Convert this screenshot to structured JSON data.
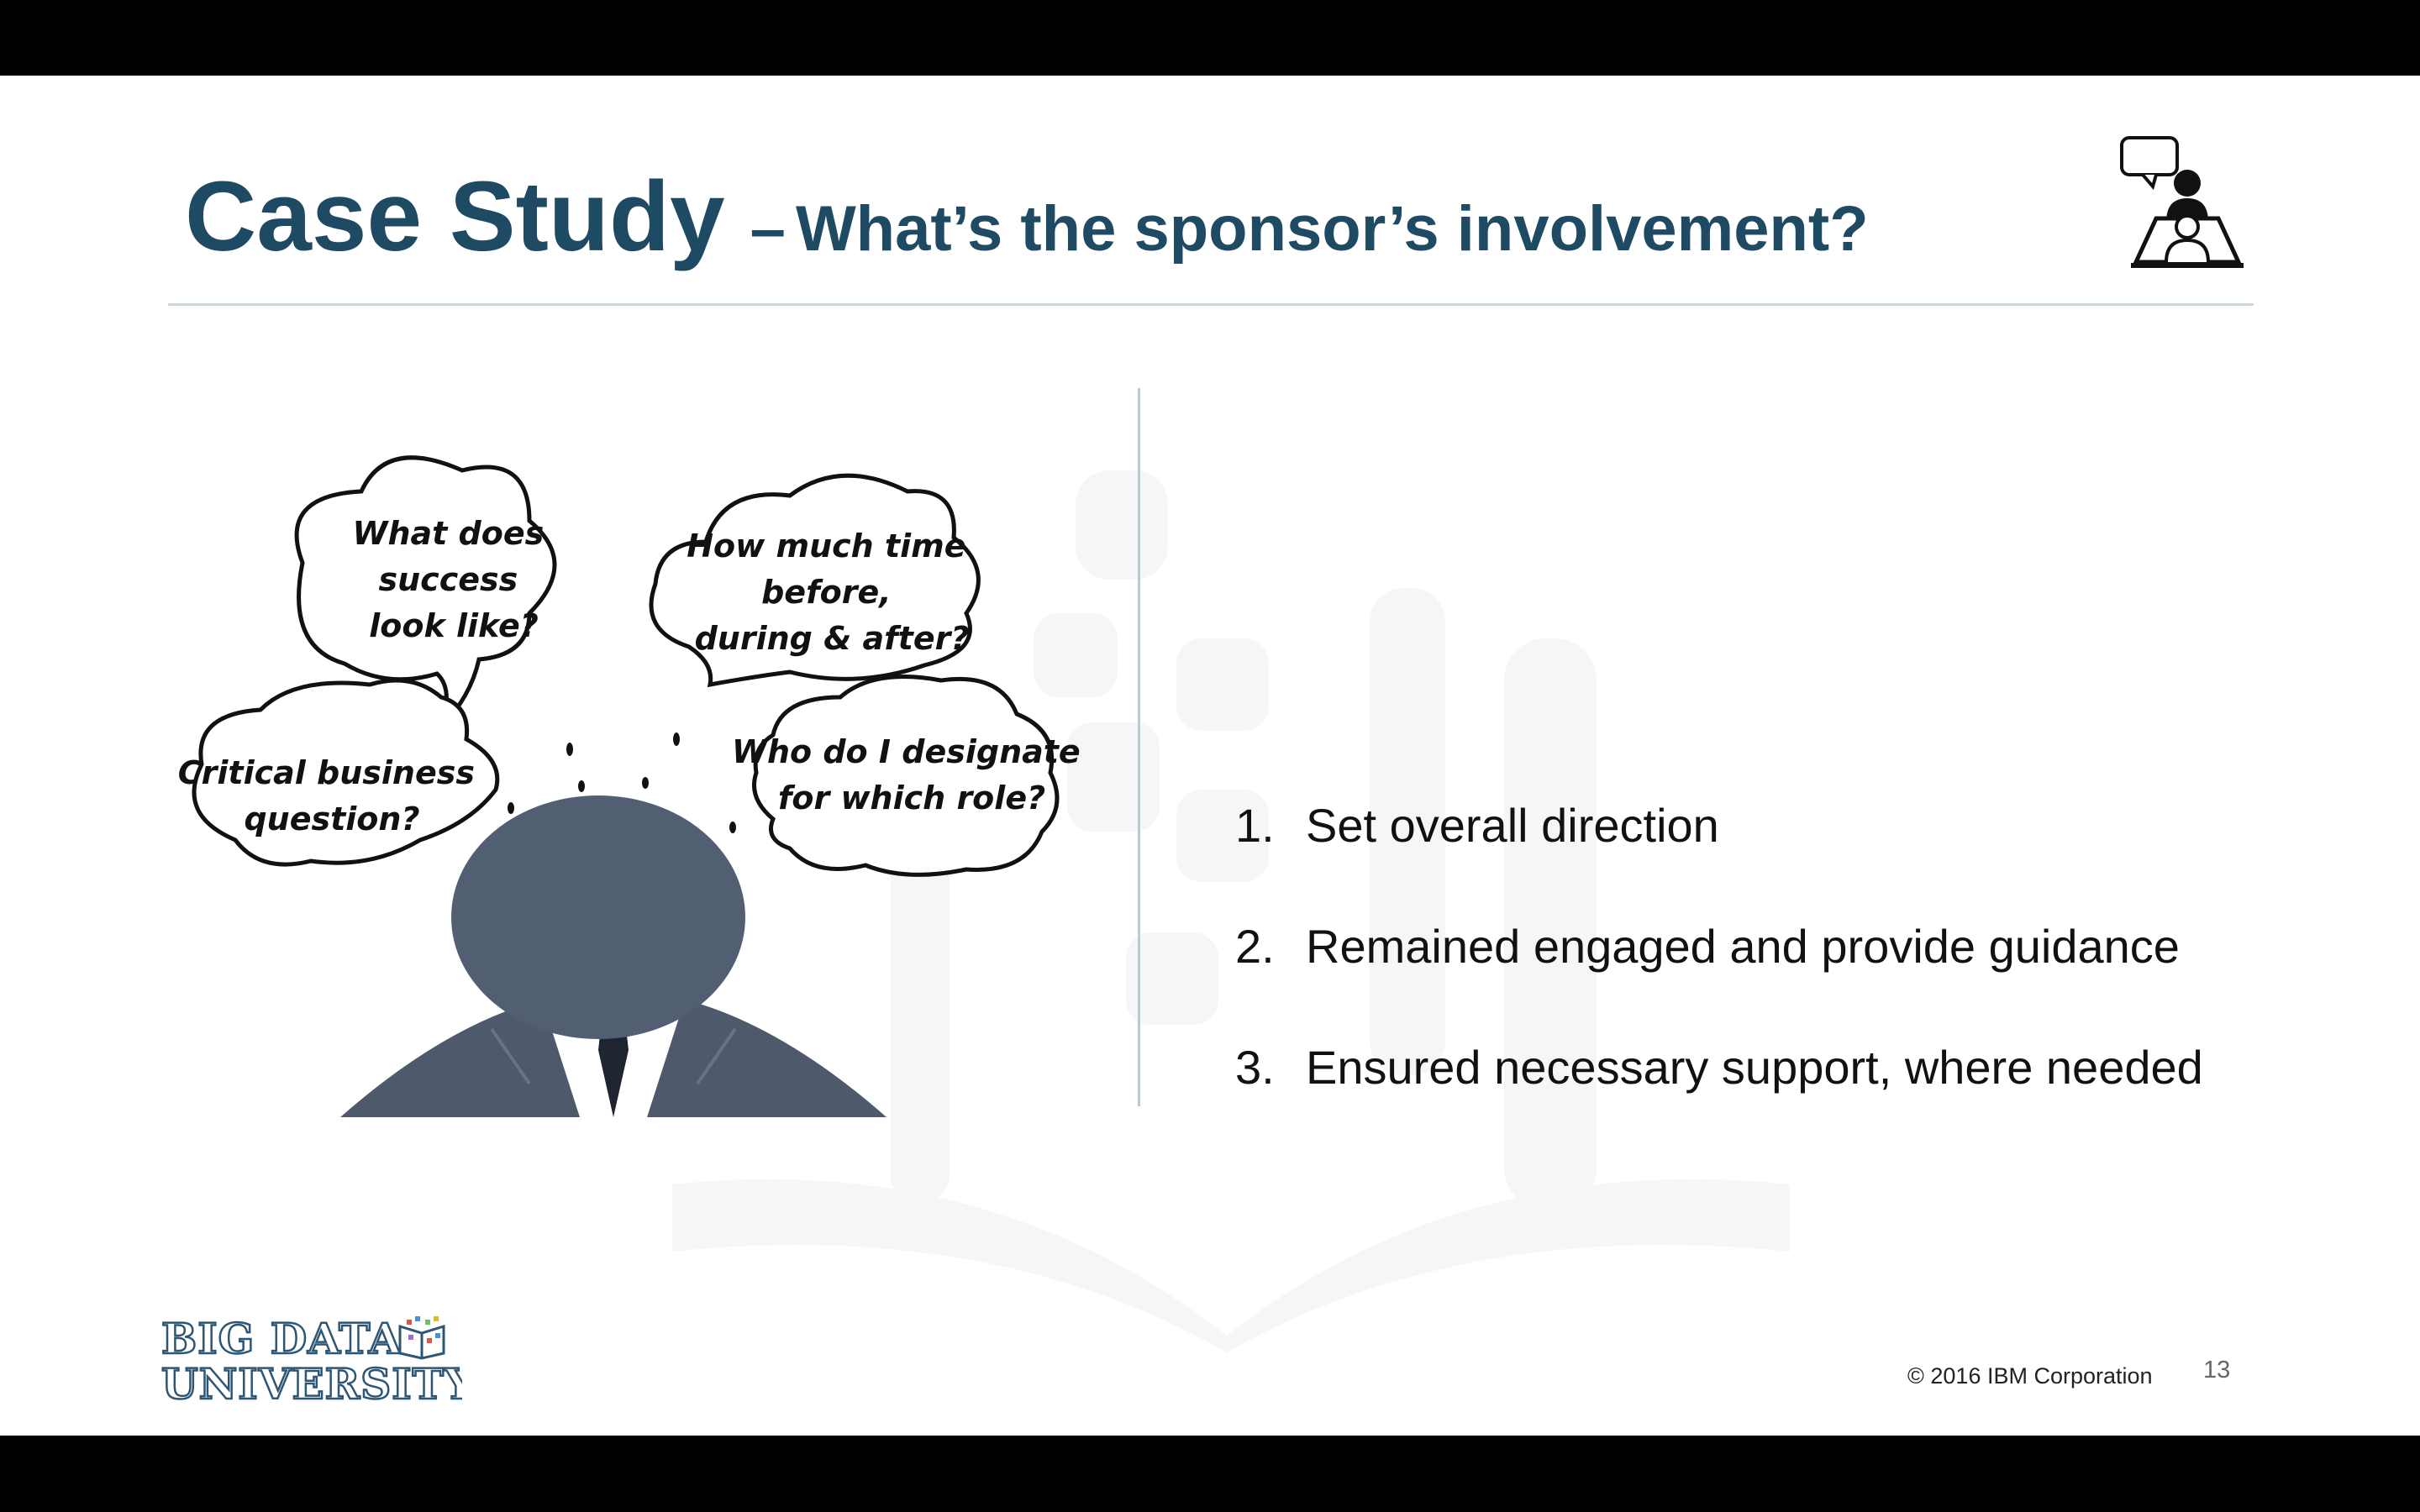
{
  "slide": {
    "title_main": "Case Study",
    "title_dash": "–",
    "title_sub": "What’s the sponsor’s involvement?",
    "thought_bubbles": [
      {
        "lines": [
          "What does",
          "success",
          "look like?"
        ]
      },
      {
        "lines": [
          "How much time",
          "before,",
          "during & after?"
        ]
      },
      {
        "lines": [
          "Critical business",
          "question?"
        ]
      },
      {
        "lines": [
          "Who do I designate",
          "for which role?"
        ]
      }
    ],
    "points": [
      {
        "num": "1.",
        "text": "Set overall direction"
      },
      {
        "num": "2.",
        "text": "Remained engaged and provide guidance"
      },
      {
        "num": "3.",
        "text": "Ensured necessary support, where needed"
      }
    ],
    "logo_line1": "BIG DATA",
    "logo_line2": "UNIVERSITY",
    "copyright": "© 2016 IBM Corporation",
    "page_number": "13"
  },
  "colors": {
    "title": "#1f4a63",
    "head": "#525f73",
    "suit": "#4e5a6b",
    "divider": "#b9cad2"
  },
  "icons": [
    "presenter-icon",
    "thought-bubble-icon",
    "book-watermark"
  ]
}
